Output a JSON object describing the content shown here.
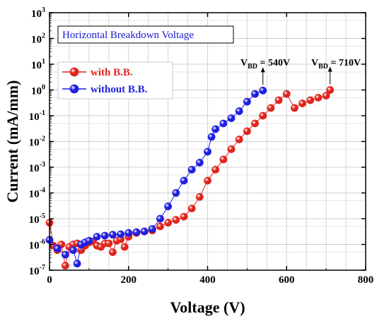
{
  "chart_data": {
    "type": "scatter",
    "title": "Horizontal Breakdown Voltage",
    "xlabel": "Voltage (V)",
    "ylabel": "Current (mA/mm)",
    "xlim": [
      0,
      800
    ],
    "ylim_exp": [
      -7,
      3
    ],
    "yscale": "log",
    "grid": true,
    "legend_position": "top-left",
    "x_ticks": [
      "0",
      "200",
      "400",
      "600",
      "800"
    ],
    "y_ticks": [
      {
        "base": "10",
        "exp": "3"
      },
      {
        "base": "10",
        "exp": "2"
      },
      {
        "base": "10",
        "exp": "1"
      },
      {
        "base": "10",
        "exp": "0"
      },
      {
        "base": "10",
        "exp": "-1"
      },
      {
        "base": "10",
        "exp": "-2"
      },
      {
        "base": "10",
        "exp": "-3"
      },
      {
        "base": "10",
        "exp": "-4"
      },
      {
        "base": "10",
        "exp": "-5"
      },
      {
        "base": "10",
        "exp": "-6"
      },
      {
        "base": "10",
        "exp": "-7"
      }
    ],
    "series": [
      {
        "name": "with B.B.",
        "color": "#e0241c",
        "x": [
          0,
          10,
          20,
          30,
          40,
          50,
          60,
          70,
          80,
          90,
          100,
          110,
          120,
          130,
          140,
          150,
          160,
          170,
          180,
          190,
          200,
          220,
          240,
          260,
          280,
          300,
          320,
          340,
          360,
          380,
          400,
          420,
          440,
          460,
          480,
          500,
          520,
          540,
          560,
          580,
          600,
          620,
          640,
          660,
          680,
          700,
          710
        ],
        "y": [
          7e-06,
          9e-07,
          6e-07,
          1e-06,
          1.5e-07,
          8e-07,
          1e-06,
          1.1e-06,
          6e-07,
          9e-07,
          1.2e-06,
          1.3e-06,
          9e-07,
          8e-07,
          1.1e-06,
          1.1e-06,
          5e-07,
          1.4e-06,
          1.6e-06,
          8e-07,
          2e-06,
          2.8e-06,
          3.2e-06,
          3.5e-06,
          5e-06,
          7e-06,
          9e-06,
          1.2e-05,
          2.5e-05,
          7e-05,
          0.0003,
          0.0008,
          0.002,
          0.005,
          0.012,
          0.025,
          0.05,
          0.1,
          0.2,
          0.4,
          0.7,
          0.2,
          0.3,
          0.4,
          0.5,
          0.6,
          1.0
        ]
      },
      {
        "name": "without B.B.",
        "color": "#1f1fe0",
        "x": [
          0,
          20,
          40,
          60,
          70,
          80,
          90,
          100,
          120,
          140,
          160,
          180,
          200,
          220,
          240,
          260,
          280,
          300,
          320,
          340,
          360,
          380,
          400,
          410,
          420,
          440,
          460,
          480,
          500,
          520,
          540
        ],
        "y": [
          1.5e-06,
          7e-07,
          4e-07,
          6e-07,
          1.8e-07,
          1e-06,
          1.2e-06,
          1.4e-06,
          2e-06,
          2.2e-06,
          2.4e-06,
          2.5e-06,
          2.8e-06,
          3e-06,
          3.2e-06,
          4e-06,
          1e-05,
          3e-05,
          0.0001,
          0.0003,
          0.0008,
          0.0015,
          0.004,
          0.015,
          0.03,
          0.05,
          0.08,
          0.15,
          0.35,
          0.7,
          0.95
        ]
      }
    ],
    "annotations": [
      {
        "label": "V",
        "sub": "BD",
        "value": " = 540V",
        "x": 540,
        "y": 0.95
      },
      {
        "label": "V",
        "sub": "BD",
        "value": " = 710V",
        "x": 710,
        "y": 1.0
      }
    ]
  }
}
